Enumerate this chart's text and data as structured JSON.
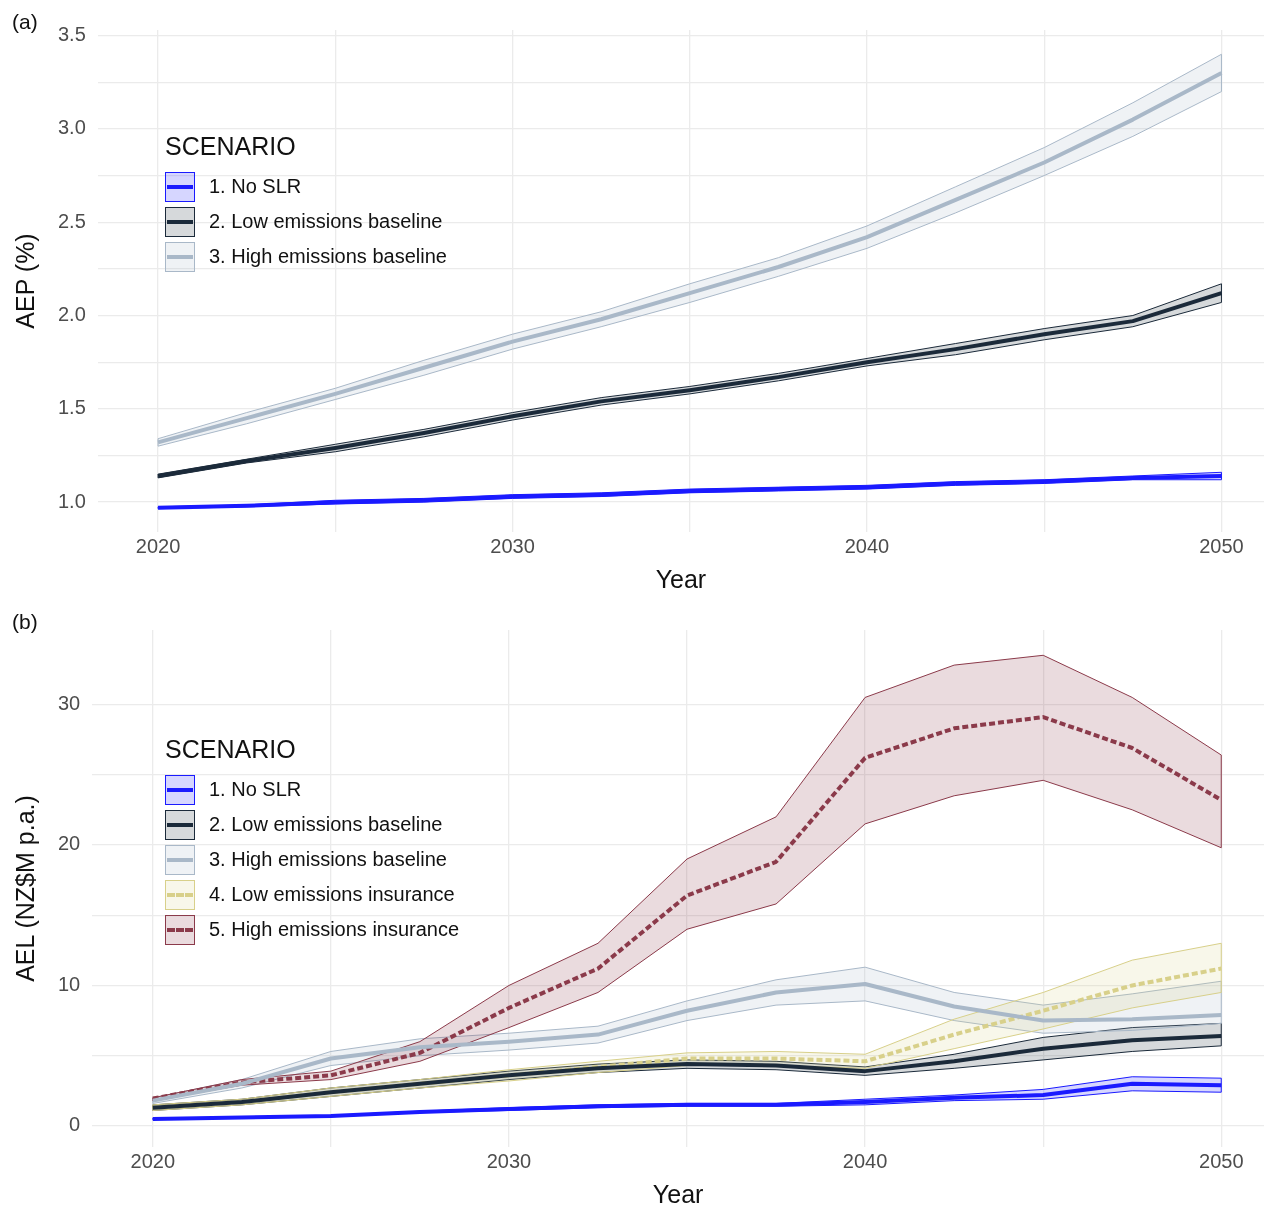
{
  "chart_data": [
    {
      "type": "line",
      "annotations": [
        "(a)"
      ],
      "xlabel": "Year",
      "ylabel": "AEP (%)",
      "legend_title": "SCENARIO",
      "legend": "left",
      "grid": true,
      "xlim": [
        2018.3,
        2051.2
      ],
      "ylim": [
        0.84,
        3.53
      ],
      "xticks": [
        2020,
        {
          "value": 2025,
          "label": null
        },
        2030,
        {
          "value": 2035,
          "label": null
        },
        2040,
        {
          "value": 2045,
          "label": null
        },
        2050
      ],
      "yticks": [
        {
          "value": 1,
          "label": "1.0"
        },
        {
          "value": 1.25,
          "label": null
        },
        1.5,
        {
          "value": 1.75,
          "label": null
        },
        {
          "value": 2,
          "label": "2.0"
        },
        {
          "value": 2.25,
          "label": null
        },
        2.5,
        {
          "value": 2.75,
          "label": null
        },
        {
          "value": 3,
          "label": "3.0"
        },
        {
          "value": 3.25,
          "label": null
        },
        3.5
      ],
      "x": [
        2020,
        2022.5,
        2025,
        2027.5,
        2030,
        2032.5,
        2035,
        2037.5,
        2040,
        2042.5,
        2045,
        2047.5,
        2050
      ],
      "series": [
        {
          "name": "1. No SLR",
          "color": "#1a1aff",
          "line_style": "solid",
          "values": [
            0.97,
            0.98,
            1.0,
            1.01,
            1.03,
            1.04,
            1.06,
            1.07,
            1.08,
            1.1,
            1.11,
            1.13,
            1.14
          ],
          "lower": [
            0.965,
            0.975,
            0.99,
            1.0,
            1.02,
            1.03,
            1.05,
            1.06,
            1.07,
            1.09,
            1.1,
            1.12,
            1.12
          ],
          "upper": [
            0.975,
            0.985,
            1.01,
            1.02,
            1.04,
            1.05,
            1.07,
            1.08,
            1.09,
            1.11,
            1.12,
            1.14,
            1.16
          ]
        },
        {
          "name": "2. Low emissions baseline",
          "color": "#1b2a3a",
          "line_style": "solid",
          "values": [
            1.14,
            1.22,
            1.29,
            1.37,
            1.46,
            1.54,
            1.6,
            1.67,
            1.75,
            1.82,
            1.9,
            1.97,
            2.12
          ],
          "lower": [
            1.13,
            1.21,
            1.27,
            1.35,
            1.44,
            1.52,
            1.58,
            1.65,
            1.73,
            1.79,
            1.87,
            1.94,
            2.07
          ],
          "upper": [
            1.15,
            1.23,
            1.31,
            1.39,
            1.48,
            1.56,
            1.62,
            1.69,
            1.77,
            1.85,
            1.93,
            2.0,
            2.17
          ]
        },
        {
          "name": "3. High emissions baseline",
          "color": "#a9b8c8",
          "line_style": "solid",
          "values": [
            1.32,
            1.45,
            1.58,
            1.72,
            1.86,
            1.98,
            2.12,
            2.26,
            2.42,
            2.62,
            2.82,
            3.05,
            3.3
          ],
          "lower": [
            1.3,
            1.42,
            1.55,
            1.68,
            1.82,
            1.94,
            2.07,
            2.21,
            2.36,
            2.55,
            2.75,
            2.96,
            3.2
          ],
          "upper": [
            1.34,
            1.48,
            1.61,
            1.76,
            1.9,
            2.02,
            2.17,
            2.31,
            2.48,
            2.69,
            2.9,
            3.14,
            3.4
          ]
        }
      ]
    },
    {
      "type": "line",
      "annotations": [
        "(b)"
      ],
      "xlabel": "Year",
      "ylabel": "AEL (NZ$M p.a.)",
      "legend_title": "SCENARIO",
      "legend": "left",
      "grid": true,
      "xlim": [
        2018.3,
        2051.2
      ],
      "ylim": [
        -1.5,
        35.3
      ],
      "xticks": [
        2020,
        {
          "value": 2025,
          "label": null
        },
        2030,
        {
          "value": 2035,
          "label": null
        },
        2040,
        {
          "value": 2045,
          "label": null
        },
        2050
      ],
      "yticks": [
        0,
        {
          "value": 5,
          "label": null
        },
        10,
        {
          "value": 15,
          "label": null
        },
        20,
        {
          "value": 25,
          "label": null
        },
        30
      ],
      "x": [
        2020,
        2022.5,
        2025,
        2027.5,
        2030,
        2032.5,
        2035,
        2037.5,
        2040,
        2042.5,
        2045,
        2047.5,
        2050
      ],
      "series": [
        {
          "name": "1. No SLR",
          "color": "#1a1aff",
          "line_style": "solid",
          "values": [
            0.5,
            0.6,
            0.7,
            1.0,
            1.2,
            1.4,
            1.5,
            1.5,
            1.7,
            2.0,
            2.2,
            3.0,
            2.9
          ],
          "lower": [
            0.45,
            0.55,
            0.65,
            0.95,
            1.1,
            1.3,
            1.4,
            1.4,
            1.5,
            1.8,
            1.9,
            2.5,
            2.4
          ],
          "upper": [
            0.55,
            0.65,
            0.75,
            1.05,
            1.3,
            1.5,
            1.6,
            1.6,
            1.9,
            2.2,
            2.6,
            3.5,
            3.4
          ]
        },
        {
          "name": "2. Low emissions baseline",
          "color": "#1b2a3a",
          "line_style": "solid",
          "values": [
            1.3,
            1.7,
            2.4,
            3.0,
            3.6,
            4.1,
            4.4,
            4.3,
            3.9,
            4.6,
            5.5,
            6.1,
            6.4
          ],
          "lower": [
            1.1,
            1.5,
            2.1,
            2.7,
            3.3,
            3.8,
            4.1,
            4.0,
            3.6,
            4.1,
            4.7,
            5.3,
            5.7
          ],
          "upper": [
            1.5,
            1.9,
            2.7,
            3.3,
            3.9,
            4.4,
            4.7,
            4.6,
            4.2,
            5.1,
            6.3,
            7.0,
            7.3
          ]
        },
        {
          "name": "3. High emissions baseline",
          "color": "#a9b8c8",
          "line_style": "solid",
          "values": [
            1.8,
            3.0,
            4.8,
            5.6,
            6.0,
            6.5,
            8.2,
            9.5,
            10.1,
            8.5,
            7.5,
            7.6,
            7.9
          ],
          "lower": [
            1.6,
            2.7,
            4.3,
            5.0,
            5.4,
            5.9,
            7.5,
            8.6,
            8.9,
            7.5,
            6.6,
            6.8,
            7.3
          ],
          "upper": [
            2.0,
            3.3,
            5.3,
            6.2,
            6.6,
            7.1,
            8.9,
            10.4,
            11.3,
            9.5,
            8.6,
            9.4,
            10.3
          ]
        },
        {
          "name": "4. Low emissions insurance",
          "color": "#d8d08a",
          "line_style": "dashed",
          "values": [
            1.3,
            1.7,
            2.4,
            3.0,
            3.6,
            4.2,
            4.8,
            4.8,
            4.6,
            6.5,
            8.2,
            10.0,
            11.2
          ],
          "lower": [
            1.1,
            1.5,
            2.1,
            2.7,
            3.2,
            3.8,
            4.3,
            4.3,
            4.1,
            5.5,
            6.9,
            8.4,
            9.5
          ],
          "upper": [
            1.5,
            1.9,
            2.7,
            3.3,
            4.0,
            4.6,
            5.2,
            5.3,
            5.1,
            7.6,
            9.5,
            11.8,
            13.0
          ]
        },
        {
          "name": "5. High emissions insurance",
          "color": "#8b3a4a",
          "line_style": "dashed",
          "values": [
            1.95,
            3.1,
            3.6,
            5.2,
            8.4,
            11.2,
            16.4,
            18.8,
            26.2,
            28.3,
            29.1,
            26.9,
            23.2
          ],
          "lower": [
            1.8,
            2.9,
            3.3,
            4.6,
            7.0,
            9.5,
            14.0,
            15.8,
            21.5,
            23.5,
            24.6,
            22.5,
            19.8
          ],
          "upper": [
            2.0,
            3.3,
            3.9,
            6.0,
            10.0,
            13.0,
            19.0,
            22.0,
            30.5,
            32.8,
            33.5,
            30.5,
            26.4
          ]
        }
      ]
    }
  ]
}
